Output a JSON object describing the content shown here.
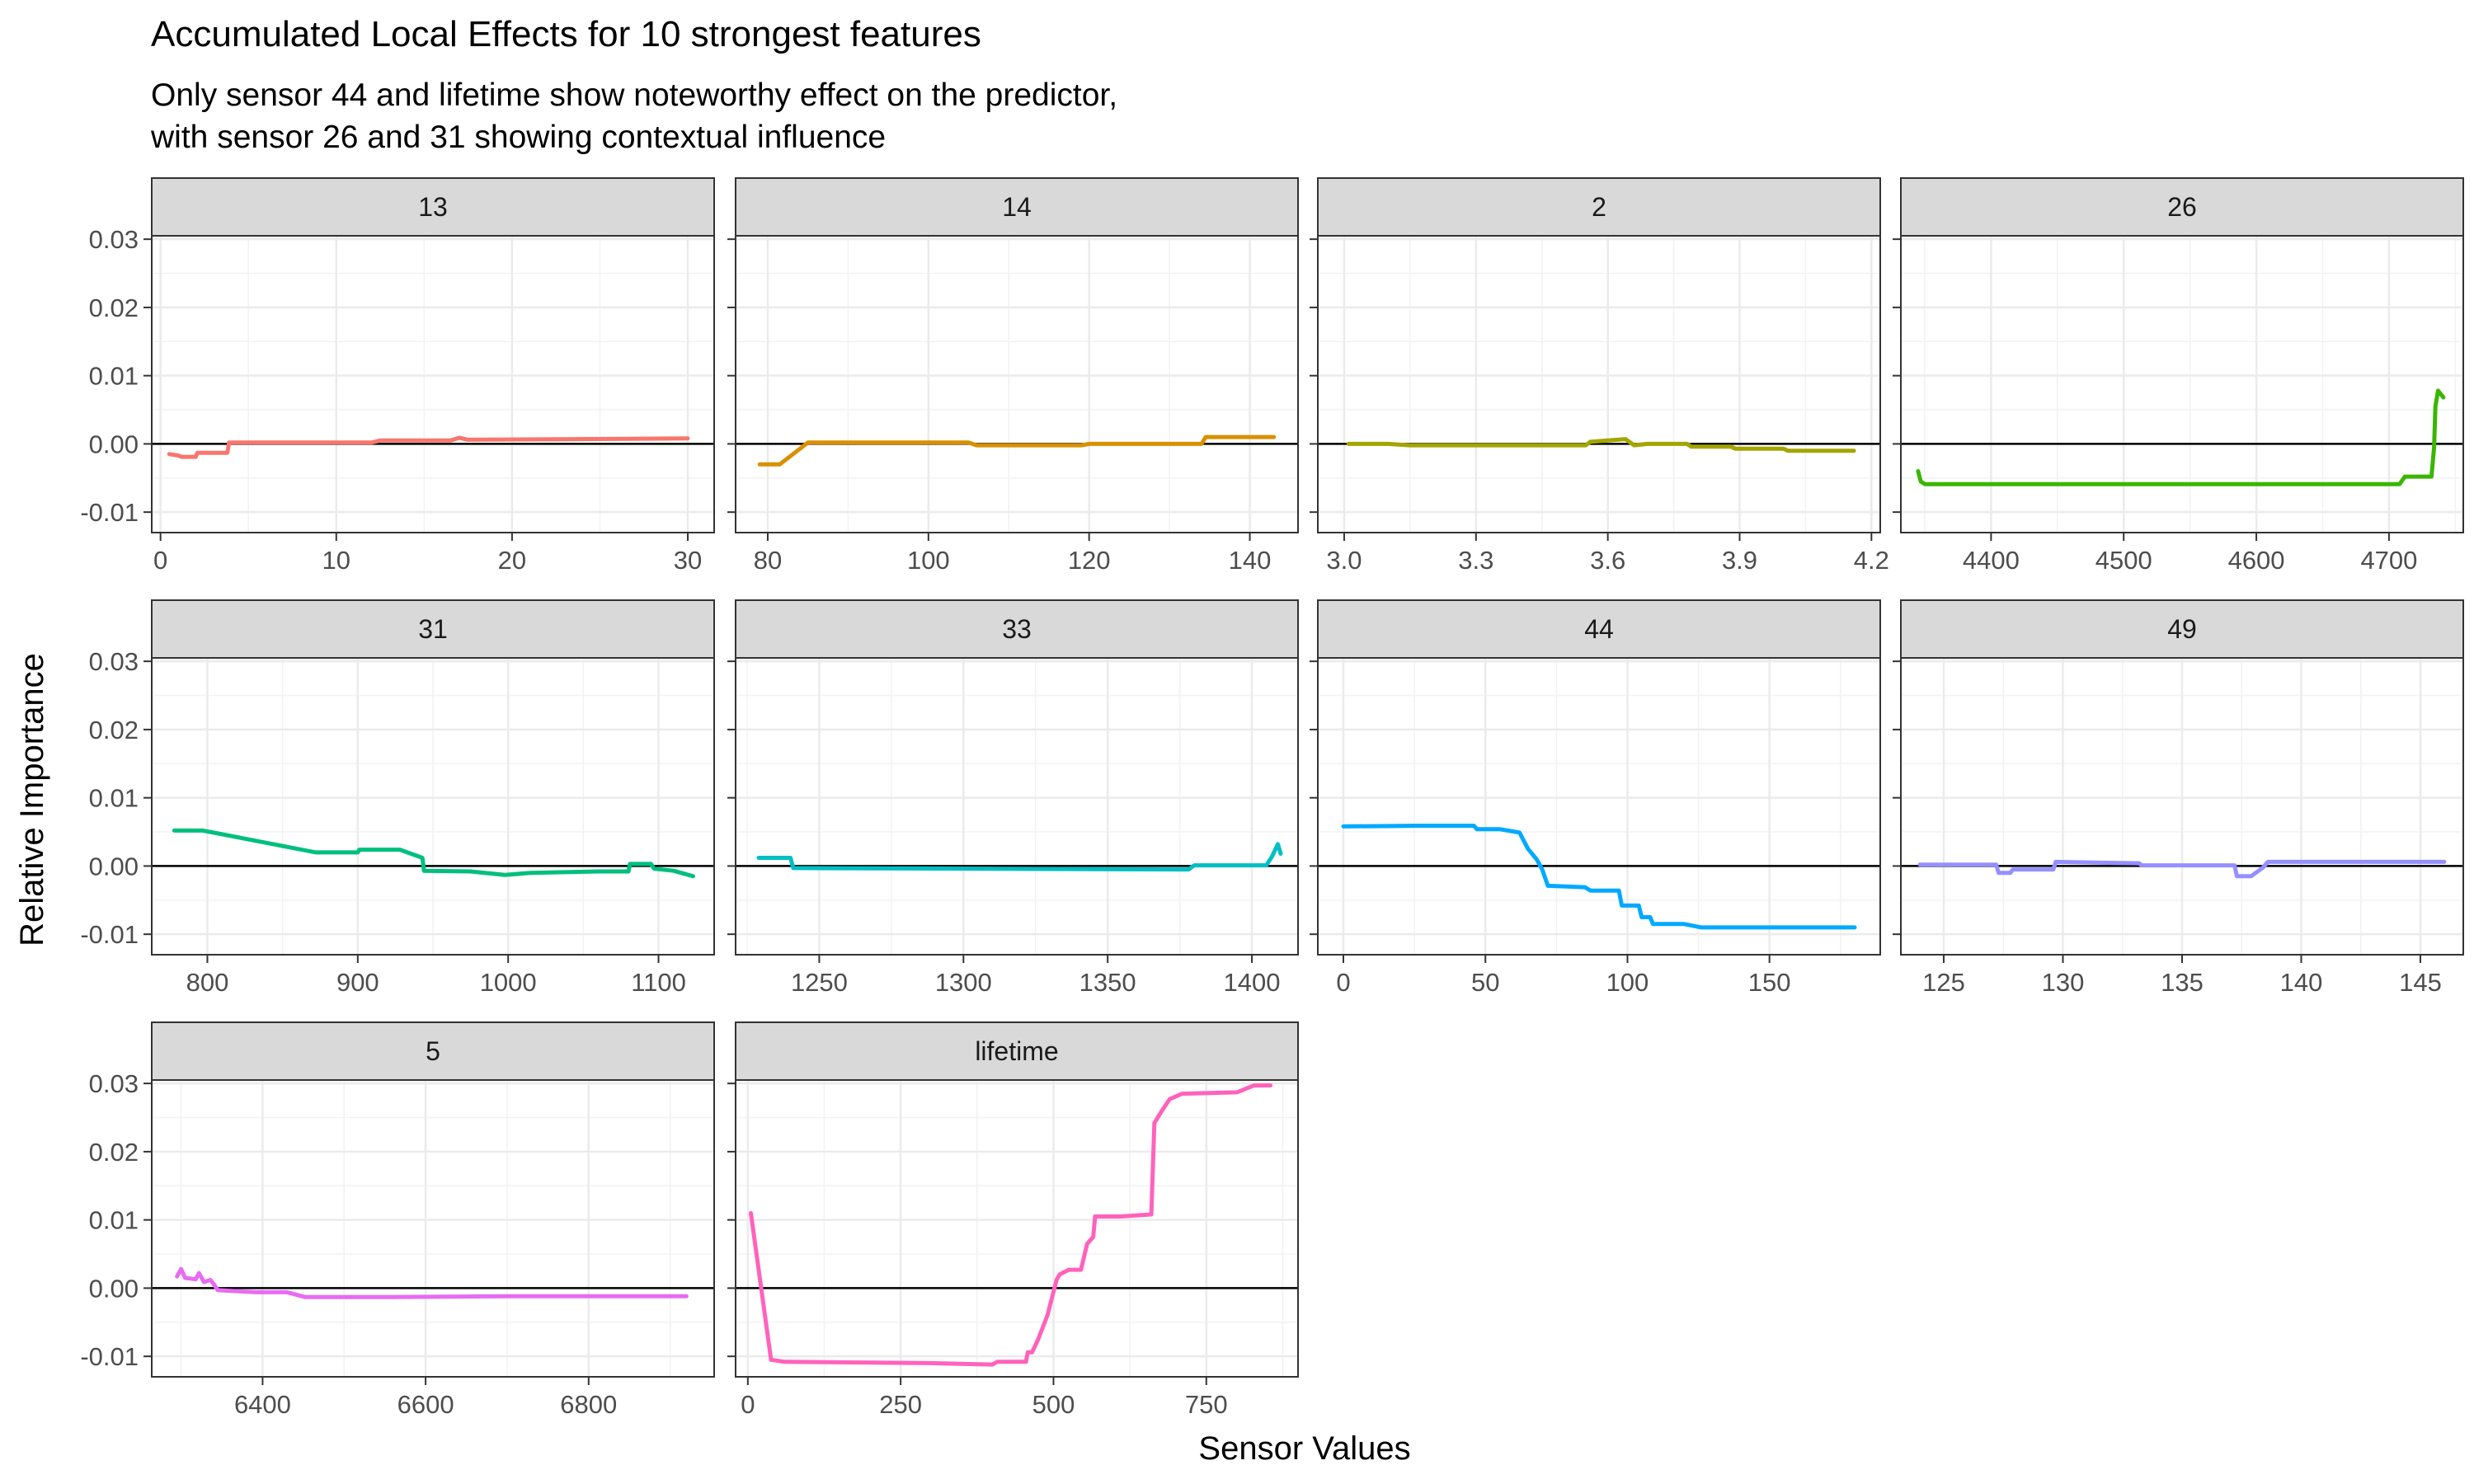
{
  "chart_data": {
    "type": "line",
    "title": "Accumulated Local Effects for 10 strongest features",
    "subtitle_lines": [
      "Only sensor 44 and lifetime show noteworthy effect on the predictor,",
      "with sensor 26 and 31 showing contextual influence"
    ],
    "xlabel": "Sensor Values",
    "ylabel": "Relative Importance",
    "ylim": [
      -0.013,
      0.0305
    ],
    "y_ticks": [
      -0.01,
      0.0,
      0.01,
      0.02,
      0.03
    ],
    "y_tick_labels": [
      "-0.01",
      "0.00",
      "0.01",
      "0.02",
      "0.03"
    ],
    "reference_line": 0,
    "grid": true,
    "facets": [
      {
        "label": "13",
        "color": "#F8766D",
        "xlim": [
          -0.5,
          31.5
        ],
        "x_ticks": [
          0,
          10,
          20,
          30
        ],
        "x_tick_labels": [
          "0",
          "10",
          "20",
          "30"
        ],
        "points": [
          [
            0.5,
            -0.0015
          ],
          [
            1,
            -0.0017
          ],
          [
            1.2,
            -0.0019
          ],
          [
            2,
            -0.0019
          ],
          [
            2.1,
            -0.0013
          ],
          [
            3.8,
            -0.0013
          ],
          [
            3.9,
            0.0002
          ],
          [
            12,
            0.0002
          ],
          [
            12.5,
            0.0005
          ],
          [
            16.5,
            0.0005
          ],
          [
            17,
            0.0009
          ],
          [
            17.5,
            0.0006
          ],
          [
            30,
            0.0008
          ]
        ]
      },
      {
        "label": "14",
        "color": "#D89000",
        "xlim": [
          76,
          146
        ],
        "x_ticks": [
          80,
          100,
          120,
          140
        ],
        "x_tick_labels": [
          "80",
          "100",
          "120",
          "140"
        ],
        "points": [
          [
            79,
            -0.003
          ],
          [
            81.5,
            -0.003
          ],
          [
            85,
            0.0002
          ],
          [
            105,
            0.0002
          ],
          [
            106,
            -0.0002
          ],
          [
            119,
            -0.0002
          ],
          [
            120,
            0
          ],
          [
            134,
            0
          ],
          [
            134.5,
            0.001
          ],
          [
            143,
            0.001
          ]
        ]
      },
      {
        "label": "2",
        "color": "#A3A500",
        "xlim": [
          2.94,
          4.22
        ],
        "x_ticks": [
          3.0,
          3.3,
          3.6,
          3.9,
          4.2
        ],
        "x_tick_labels": [
          "3.0",
          "3.3",
          "3.6",
          "3.9",
          "4.2"
        ],
        "points": [
          [
            3.01,
            0
          ],
          [
            3.1,
            0
          ],
          [
            3.15,
            -0.0002
          ],
          [
            3.55,
            -0.0002
          ],
          [
            3.56,
            0.0003
          ],
          [
            3.64,
            0.0007
          ],
          [
            3.66,
            -0.0002
          ],
          [
            3.69,
            0
          ],
          [
            3.78,
            0
          ],
          [
            3.79,
            -0.0004
          ],
          [
            3.88,
            -0.0004
          ],
          [
            3.89,
            -0.0007
          ],
          [
            4.0,
            -0.0007
          ],
          [
            4.01,
            -0.001
          ],
          [
            4.16,
            -0.001
          ]
        ]
      },
      {
        "label": "26",
        "color": "#39B600",
        "xlim": [
          4332,
          4756
        ],
        "x_ticks": [
          4400,
          4500,
          4600,
          4700
        ],
        "x_tick_labels": [
          "4400",
          "4500",
          "4600",
          "4700"
        ],
        "points": [
          [
            4345,
            -0.004
          ],
          [
            4347,
            -0.0055
          ],
          [
            4350,
            -0.0059
          ],
          [
            4708,
            -0.0059
          ],
          [
            4712,
            -0.0048
          ],
          [
            4732,
            -0.0048
          ],
          [
            4734,
            -0.0005
          ],
          [
            4735,
            0.0055
          ],
          [
            4737,
            0.0078
          ],
          [
            4741,
            0.0068
          ]
        ]
      },
      {
        "label": "31",
        "color": "#00BF7D",
        "xlim": [
          763,
          1137
        ],
        "x_ticks": [
          800,
          900,
          1000,
          1100
        ],
        "x_tick_labels": [
          "800",
          "900",
          "1000",
          "1100"
        ],
        "points": [
          [
            778,
            0.0052
          ],
          [
            797,
            0.0052
          ],
          [
            872,
            0.002
          ],
          [
            900,
            0.002
          ],
          [
            901,
            0.0024
          ],
          [
            928,
            0.0024
          ],
          [
            943,
            0.0012
          ],
          [
            944,
            -0.0007
          ],
          [
            975,
            -0.0008
          ],
          [
            998,
            -0.0013
          ],
          [
            1015,
            -0.001
          ],
          [
            1060,
            -0.0008
          ],
          [
            1080,
            -0.0008
          ],
          [
            1081,
            0.0003
          ],
          [
            1095,
            0.0003
          ],
          [
            1097,
            -0.0004
          ],
          [
            1110,
            -0.0007
          ],
          [
            1123,
            -0.0015
          ]
        ]
      },
      {
        "label": "33",
        "color": "#00BFC4",
        "xlim": [
          1221,
          1416
        ],
        "x_ticks": [
          1250,
          1300,
          1350,
          1400
        ],
        "x_tick_labels": [
          "1250",
          "1300",
          "1350",
          "1400"
        ],
        "points": [
          [
            1229,
            0.0012
          ],
          [
            1240,
            0.0012
          ],
          [
            1241,
            -0.0003
          ],
          [
            1378,
            -0.0005
          ],
          [
            1380,
            0.0001
          ],
          [
            1405,
            0.0001
          ],
          [
            1407,
            0.0014
          ],
          [
            1409,
            0.0032
          ],
          [
            1410,
            0.0018
          ]
        ]
      },
      {
        "label": "44",
        "color": "#00A9FF",
        "xlim": [
          -9,
          189
        ],
        "x_ticks": [
          0,
          50,
          100,
          150
        ],
        "x_tick_labels": [
          "0",
          "50",
          "100",
          "150"
        ],
        "points": [
          [
            0,
            0.0058
          ],
          [
            25,
            0.0059
          ],
          [
            46,
            0.0059
          ],
          [
            47,
            0.0054
          ],
          [
            55,
            0.0054
          ],
          [
            62,
            0.0049
          ],
          [
            65,
            0.0025
          ],
          [
            68,
            0.001
          ],
          [
            70,
            -0.0005
          ],
          [
            72,
            -0.0029
          ],
          [
            85,
            -0.0031
          ],
          [
            87,
            -0.0036
          ],
          [
            97,
            -0.0036
          ],
          [
            98,
            -0.0058
          ],
          [
            104,
            -0.0058
          ],
          [
            105,
            -0.0075
          ],
          [
            108,
            -0.0075
          ],
          [
            109,
            -0.0085
          ],
          [
            120,
            -0.0085
          ],
          [
            126,
            -0.009
          ],
          [
            180,
            -0.009
          ]
        ]
      },
      {
        "label": "49",
        "color": "#9590FF",
        "xlim": [
          123.2,
          146.8
        ],
        "x_ticks": [
          125,
          130,
          135,
          140,
          145
        ],
        "x_tick_labels": [
          "125",
          "130",
          "135",
          "140",
          "145"
        ],
        "points": [
          [
            124,
            0.0002
          ],
          [
            127.2,
            0.0002
          ],
          [
            127.3,
            -0.001
          ],
          [
            127.8,
            -0.001
          ],
          [
            127.9,
            -0.0005
          ],
          [
            129.6,
            -0.0005
          ],
          [
            129.7,
            0.0006
          ],
          [
            133.2,
            0.0004
          ],
          [
            133.3,
            0.0001
          ],
          [
            137.2,
            0.0001
          ],
          [
            137.3,
            -0.0015
          ],
          [
            137.9,
            -0.0015
          ],
          [
            138.4,
            -0.0002
          ],
          [
            138.6,
            0.0006
          ],
          [
            146,
            0.0006
          ]
        ]
      },
      {
        "label": "5",
        "color": "#E76BF3",
        "xlim": [
          6264,
          6954
        ],
        "x_ticks": [
          6400,
          6600,
          6800
        ],
        "x_tick_labels": [
          "6400",
          "6600",
          "6800"
        ],
        "points": [
          [
            6295,
            0.0017
          ],
          [
            6300,
            0.0028
          ],
          [
            6305,
            0.0015
          ],
          [
            6318,
            0.0013
          ],
          [
            6322,
            0.0022
          ],
          [
            6328,
            0.0009
          ],
          [
            6336,
            0.0012
          ],
          [
            6340,
            0.0006
          ],
          [
            6345,
            -0.0003
          ],
          [
            6392,
            -0.0006
          ],
          [
            6430,
            -0.0006
          ],
          [
            6452,
            -0.0013
          ],
          [
            6560,
            -0.0013
          ],
          [
            6700,
            -0.0012
          ],
          [
            6920,
            -0.0012
          ]
        ]
      },
      {
        "label": "lifetime",
        "color": "#FF62BC",
        "xlim": [
          -20,
          900
        ],
        "x_ticks": [
          0,
          250,
          500,
          750
        ],
        "x_tick_labels": [
          "0",
          "250",
          "500",
          "750"
        ],
        "points": [
          [
            5,
            0.011
          ],
          [
            38,
            -0.0105
          ],
          [
            60,
            -0.0108
          ],
          [
            300,
            -0.011
          ],
          [
            400,
            -0.0112
          ],
          [
            408,
            -0.0108
          ],
          [
            455,
            -0.0108
          ],
          [
            458,
            -0.0094
          ],
          [
            465,
            -0.0094
          ],
          [
            475,
            -0.0075
          ],
          [
            490,
            -0.004
          ],
          [
            505,
            0.0012
          ],
          [
            510,
            0.002
          ],
          [
            525,
            0.0027
          ],
          [
            545,
            0.0027
          ],
          [
            555,
            0.0065
          ],
          [
            565,
            0.0075
          ],
          [
            568,
            0.0105
          ],
          [
            610,
            0.0105
          ],
          [
            660,
            0.0108
          ],
          [
            665,
            0.0242
          ],
          [
            676,
            0.0258
          ],
          [
            690,
            0.0277
          ],
          [
            710,
            0.0285
          ],
          [
            800,
            0.0287
          ],
          [
            828,
            0.0297
          ],
          [
            855,
            0.0297
          ]
        ]
      }
    ]
  }
}
